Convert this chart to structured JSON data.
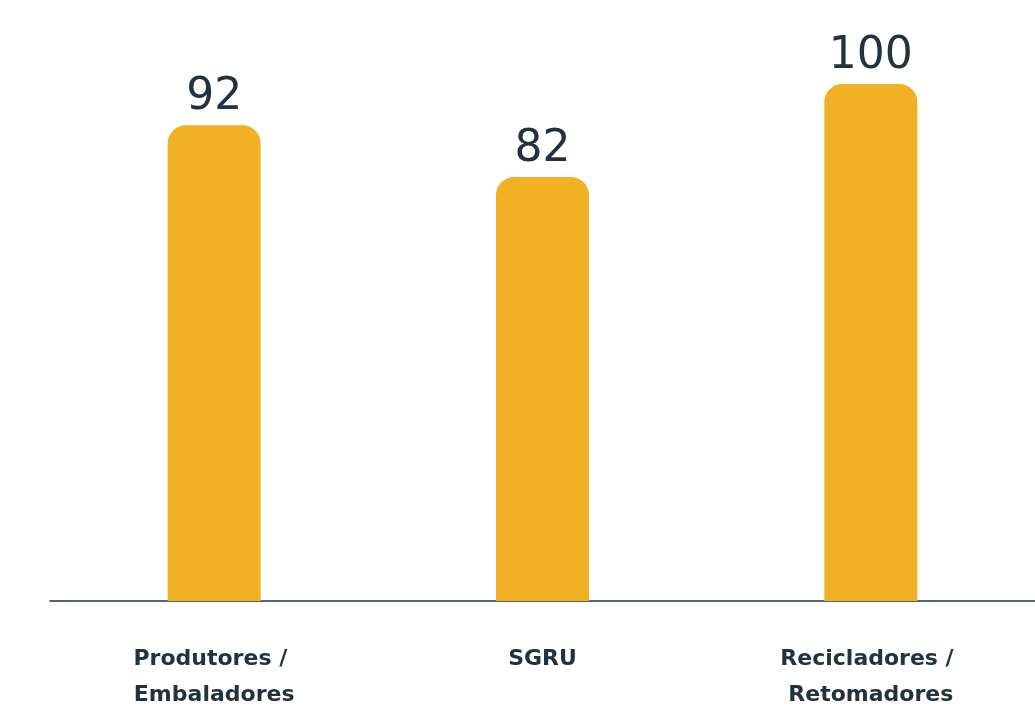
{
  "chart_data": {
    "type": "bar",
    "categories": [
      "Produtores / Embaladores",
      "SGRU",
      "Recicladores / Retomadores"
    ],
    "values": [
      92,
      82,
      100
    ],
    "color": "#f2b124",
    "data_labels": true
  }
}
